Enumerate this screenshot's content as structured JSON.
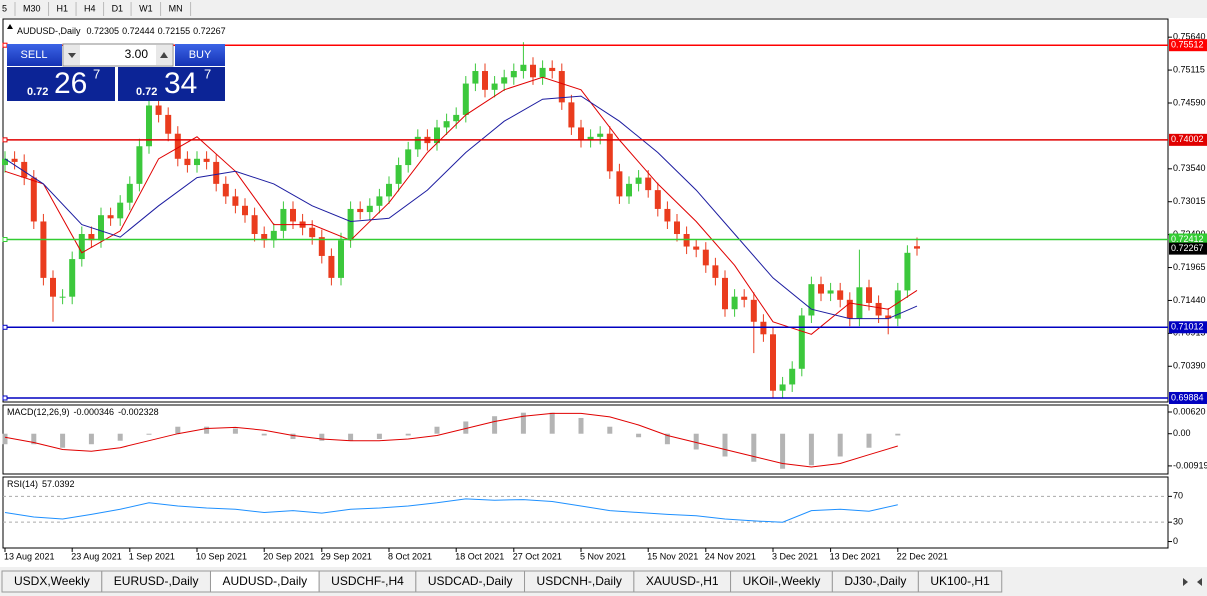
{
  "toolbar": {
    "timeframes": [
      "5",
      "M30",
      "H1",
      "H4",
      "D1",
      "W1",
      "MN"
    ]
  },
  "trade_panel": {
    "sell": "SELL",
    "lot": "3.00",
    "buy": "BUY",
    "bid_prefix": "0.72",
    "bid_big": "26",
    "bid_pip": "7",
    "ask_prefix": "0.72",
    "ask_big": "34",
    "ask_pip": "7"
  },
  "chart_data": [
    {
      "type": "candlestick",
      "title": "AUDUSD-,Daily",
      "quote": [
        0.72305,
        0.72444,
        0.72155,
        0.72267
      ],
      "categories": [
        "13 Aug 2021",
        null,
        null,
        null,
        null,
        null,
        null,
        "23 Aug 2021",
        null,
        null,
        null,
        null,
        null,
        "1 Sep 2021",
        null,
        null,
        null,
        null,
        null,
        null,
        "10 Sep 2021",
        null,
        null,
        null,
        null,
        null,
        null,
        "20 Sep 2021",
        null,
        null,
        null,
        null,
        null,
        "29 Sep 2021",
        null,
        null,
        null,
        null,
        null,
        null,
        "8 Oct 2021",
        null,
        null,
        null,
        null,
        null,
        null,
        "18 Oct 2021",
        null,
        null,
        null,
        null,
        null,
        "27 Oct 2021",
        null,
        null,
        null,
        null,
        null,
        null,
        "5 Nov 2021",
        null,
        null,
        null,
        null,
        null,
        null,
        "15 Nov 2021",
        null,
        null,
        null,
        null,
        null,
        "24 Nov 2021",
        null,
        null,
        null,
        null,
        null,
        null,
        "3 Dec 2021",
        null,
        null,
        null,
        null,
        null,
        "13 Dec 2021",
        null,
        null,
        null,
        null,
        null,
        null,
        "22 Dec 2021",
        null,
        null
      ],
      "open": [
        0.736,
        0.737,
        0.7365,
        0.734,
        0.727,
        0.718,
        0.715,
        0.715,
        0.721,
        0.725,
        0.724,
        0.728,
        0.7275,
        0.73,
        0.733,
        0.739,
        0.7455,
        0.744,
        0.741,
        0.737,
        0.736,
        0.737,
        0.7365,
        0.733,
        0.731,
        0.7295,
        0.728,
        0.725,
        0.724,
        0.7255,
        0.729,
        0.727,
        0.726,
        0.7245,
        0.7215,
        0.718,
        0.724,
        0.729,
        0.7285,
        0.7295,
        0.731,
        0.733,
        0.736,
        0.7385,
        0.7405,
        0.7395,
        0.742,
        0.743,
        0.744,
        0.749,
        0.751,
        0.748,
        0.749,
        0.75,
        0.751,
        0.752,
        0.75,
        0.7515,
        0.751,
        0.746,
        0.742,
        0.74,
        0.7405,
        0.741,
        0.735,
        0.731,
        0.733,
        0.734,
        0.732,
        0.729,
        0.727,
        0.725,
        0.723,
        0.7225,
        0.72,
        0.718,
        0.713,
        0.715,
        0.7145,
        0.711,
        0.709,
        0.7,
        0.701,
        0.7035,
        0.712,
        0.717,
        0.7155,
        0.716,
        0.7145,
        0.7115,
        0.7165,
        0.714,
        0.712,
        0.7115,
        0.716,
        0.72305
      ],
      "high": [
        0.7382,
        0.7382,
        0.7377,
        0.7352,
        0.7282,
        0.7192,
        0.7162,
        0.7222,
        0.7262,
        0.7262,
        0.7292,
        0.7292,
        0.7312,
        0.7342,
        0.7402,
        0.7467,
        0.7467,
        0.7452,
        0.7422,
        0.7382,
        0.7382,
        0.7382,
        0.7377,
        0.7342,
        0.7322,
        0.7307,
        0.7292,
        0.7262,
        0.7267,
        0.7302,
        0.7302,
        0.7282,
        0.7272,
        0.7257,
        0.7227,
        0.7252,
        0.7302,
        0.7302,
        0.7307,
        0.7322,
        0.7342,
        0.7372,
        0.7397,
        0.7417,
        0.7417,
        0.7432,
        0.7442,
        0.7452,
        0.7502,
        0.7522,
        0.7522,
        0.7502,
        0.7512,
        0.7522,
        0.7556,
        0.7532,
        0.7527,
        0.7527,
        0.7522,
        0.7472,
        0.7432,
        0.7417,
        0.7422,
        0.7422,
        0.7362,
        0.7342,
        0.7352,
        0.7352,
        0.7332,
        0.7302,
        0.7282,
        0.7262,
        0.7242,
        0.7237,
        0.7212,
        0.7192,
        0.7162,
        0.7162,
        0.7157,
        0.7122,
        0.7102,
        0.7022,
        0.7047,
        0.7132,
        0.7182,
        0.7182,
        0.7172,
        0.7172,
        0.7157,
        0.7225,
        0.7177,
        0.7152,
        0.7132,
        0.7172,
        0.7232,
        0.72444
      ],
      "low": [
        0.7348,
        0.7353,
        0.7328,
        0.7258,
        0.7168,
        0.711,
        0.7138,
        0.7138,
        0.7198,
        0.7228,
        0.7228,
        0.7263,
        0.7263,
        0.7288,
        0.7318,
        0.7378,
        0.7428,
        0.7398,
        0.7358,
        0.7348,
        0.7348,
        0.7353,
        0.7318,
        0.7298,
        0.7283,
        0.7268,
        0.7238,
        0.7228,
        0.7228,
        0.7243,
        0.7258,
        0.7248,
        0.7233,
        0.7203,
        0.7168,
        0.7168,
        0.7228,
        0.7273,
        0.7273,
        0.7283,
        0.7298,
        0.7318,
        0.7348,
        0.7373,
        0.7383,
        0.7383,
        0.7408,
        0.7418,
        0.7428,
        0.7478,
        0.7468,
        0.7468,
        0.7478,
        0.7488,
        0.7498,
        0.7488,
        0.7488,
        0.7498,
        0.7448,
        0.7408,
        0.7388,
        0.7388,
        0.7393,
        0.7338,
        0.7298,
        0.7298,
        0.7318,
        0.7308,
        0.7278,
        0.7258,
        0.7238,
        0.7218,
        0.7213,
        0.7188,
        0.7168,
        0.7118,
        0.7118,
        0.7133,
        0.706,
        0.7078,
        0.6988,
        0.6988,
        0.6998,
        0.7023,
        0.7108,
        0.7143,
        0.7143,
        0.7133,
        0.7103,
        0.7103,
        0.7128,
        0.7108,
        0.709,
        0.7103,
        0.7148,
        0.72155
      ],
      "close": [
        0.737,
        0.7365,
        0.734,
        0.727,
        0.718,
        0.715,
        0.715,
        0.721,
        0.725,
        0.724,
        0.728,
        0.7275,
        0.73,
        0.733,
        0.739,
        0.7455,
        0.744,
        0.741,
        0.737,
        0.736,
        0.737,
        0.7365,
        0.733,
        0.731,
        0.7295,
        0.728,
        0.725,
        0.724,
        0.7255,
        0.729,
        0.727,
        0.726,
        0.7245,
        0.7215,
        0.718,
        0.724,
        0.729,
        0.7285,
        0.7295,
        0.731,
        0.733,
        0.736,
        0.7385,
        0.7405,
        0.7395,
        0.742,
        0.743,
        0.744,
        0.749,
        0.751,
        0.748,
        0.749,
        0.75,
        0.751,
        0.752,
        0.75,
        0.7515,
        0.751,
        0.746,
        0.742,
        0.74,
        0.7405,
        0.741,
        0.735,
        0.731,
        0.733,
        0.734,
        0.732,
        0.729,
        0.727,
        0.725,
        0.723,
        0.7225,
        0.72,
        0.718,
        0.713,
        0.715,
        0.7145,
        0.711,
        0.709,
        0.7,
        0.701,
        0.7035,
        0.712,
        0.717,
        0.7155,
        0.716,
        0.7145,
        0.7115,
        0.7165,
        0.714,
        0.712,
        0.7115,
        0.716,
        0.722,
        0.72267
      ],
      "up_color": "#3cc83c",
      "down_color": "#ea3c1e",
      "series": [
        {
          "color": "#e00000",
          "x": [
            0,
            4,
            8,
            12,
            16,
            20,
            24,
            28,
            32,
            36,
            40,
            44,
            48,
            52,
            56,
            60,
            64,
            68,
            72,
            76,
            80,
            84,
            88,
            92,
            95
          ],
          "values": [
            0.735,
            0.733,
            0.722,
            0.7255,
            0.737,
            0.7405,
            0.735,
            0.7265,
            0.7265,
            0.724,
            0.73,
            0.738,
            0.744,
            0.748,
            0.75,
            0.748,
            0.74,
            0.733,
            0.727,
            0.72,
            0.711,
            0.709,
            0.714,
            0.713,
            0.716
          ]
        },
        {
          "color": "#1c1ca0",
          "x": [
            0,
            4,
            8,
            12,
            16,
            20,
            24,
            28,
            32,
            36,
            40,
            44,
            48,
            52,
            56,
            60,
            64,
            68,
            72,
            76,
            80,
            84,
            88,
            92,
            95
          ],
          "values": [
            0.737,
            0.733,
            0.7265,
            0.7245,
            0.7295,
            0.734,
            0.735,
            0.733,
            0.7295,
            0.727,
            0.7275,
            0.732,
            0.738,
            0.743,
            0.7465,
            0.747,
            0.743,
            0.738,
            0.732,
            0.725,
            0.718,
            0.713,
            0.7115,
            0.7115,
            0.7135
          ]
        }
      ],
      "levels": [
        {
          "value": 0.75512,
          "color": "#ff0000"
        },
        {
          "value": 0.74002,
          "color": "#e00000"
        },
        {
          "value": 0.72412,
          "color": "#32cd32"
        },
        {
          "value": 0.71012,
          "color": "#0000c0"
        },
        {
          "value": 0.69884,
          "color": "#0000c0"
        }
      ],
      "last_price": 0.72267,
      "ylim": [
        0.6982,
        0.7593
      ],
      "yticks": [
        {
          "value": 0.7564,
          "label": "0.75640"
        },
        0.75115,
        {
          "value": 0.7459,
          "label": "0.74590"
        },
        {
          "value": 0.7354,
          "label": "0.73540"
        },
        0.73015,
        {
          "value": 0.7249,
          "label": "0.72490"
        },
        0.71965,
        {
          "value": 0.7144,
          "label": "0.71440"
        },
        0.70915,
        {
          "value": 0.7039,
          "label": "0.70390"
        }
      ]
    },
    {
      "type": "macd",
      "title": "MACD(12,26,9)",
      "readout": [
        -0.000346,
        -0.002328
      ],
      "x": [
        0,
        3,
        6,
        9,
        12,
        15,
        18,
        21,
        24,
        27,
        30,
        33,
        36,
        39,
        42,
        45,
        48,
        51,
        54,
        57,
        60,
        63,
        66,
        69,
        72,
        75,
        78,
        81,
        84,
        87,
        90,
        93
      ],
      "histogram": {
        "color": "#b4b4b4",
        "values": [
          -0.003,
          -0.003,
          -0.004,
          -0.003,
          -0.002,
          0,
          0.002,
          0.002,
          0.0015,
          -0.0005,
          -0.0015,
          -0.002,
          -0.002,
          -0.0015,
          -0.0005,
          0.002,
          0.0035,
          0.005,
          0.006,
          0.006,
          0.0045,
          0.002,
          -0.001,
          -0.003,
          -0.0045,
          -0.0065,
          -0.008,
          -0.01,
          -0.009,
          -0.0065,
          -0.004,
          -0.0005
        ]
      },
      "signal": {
        "color": "#e00000",
        "values": [
          -0.001,
          -0.0025,
          -0.0045,
          -0.005,
          -0.004,
          -0.002,
          0,
          0.0015,
          0.0018,
          0.001,
          -0.0005,
          -0.0015,
          -0.002,
          -0.002,
          -0.0015,
          -0.0005,
          0.0015,
          0.0035,
          0.005,
          0.0058,
          0.0058,
          0.0048,
          0.0025,
          -0.0005,
          -0.0025,
          -0.0045,
          -0.0065,
          -0.0085,
          -0.0095,
          -0.0085,
          -0.006,
          -0.0035
        ]
      },
      "ylim": [
        -0.0115,
        0.0082
      ],
      "yticks": [
        {
          "value": 0.0062,
          "label": "0.00620"
        },
        {
          "value": 0,
          "label": "0.00"
        },
        -0.00919
      ]
    },
    {
      "type": "rsi",
      "title": "RSI(14)",
      "readout": 57.0392,
      "x": [
        0,
        3,
        6,
        9,
        12,
        15,
        18,
        21,
        24,
        27,
        30,
        33,
        36,
        39,
        42,
        45,
        48,
        51,
        54,
        57,
        60,
        63,
        66,
        69,
        72,
        75,
        78,
        81,
        84,
        87,
        90,
        93
      ],
      "series": [
        {
          "color": "#1e90ff",
          "values": [
            45,
            38,
            35,
            42,
            50,
            60,
            55,
            52,
            50,
            45,
            48,
            44,
            50,
            52,
            55,
            60,
            66,
            64,
            65,
            62,
            55,
            48,
            45,
            42,
            40,
            35,
            32,
            30,
            48,
            50,
            47,
            57
          ]
        }
      ],
      "levels": [
        70,
        30
      ],
      "ylim": [
        -10,
        100
      ],
      "yticks": [
        70,
        30,
        0
      ]
    }
  ],
  "tabs": {
    "items": [
      "USDX,Weekly",
      "EURUSD-,Daily",
      "AUDUSD-,Daily",
      "USDCHF-,H4",
      "USDCAD-,Daily",
      "USDCNH-,Daily",
      "XAUUSD-,H1",
      "UKOil-,Weekly",
      "DJ30-,Daily",
      "UK100-,H1"
    ],
    "active": 2
  }
}
